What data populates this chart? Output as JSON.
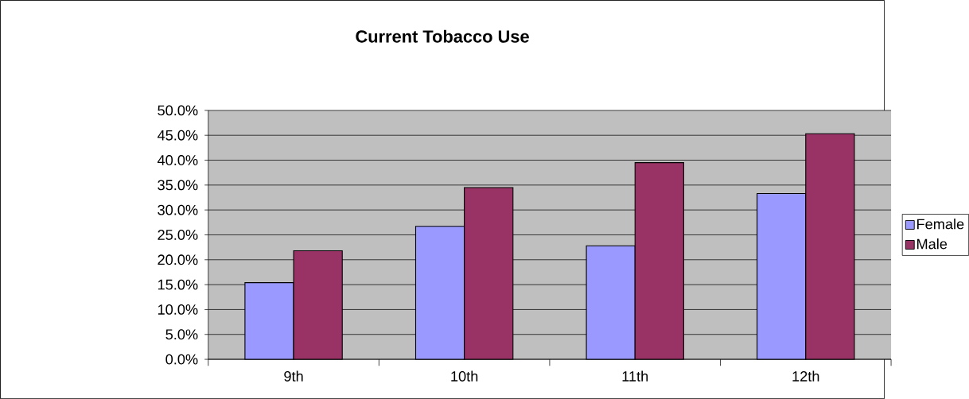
{
  "chart_data": {
    "type": "bar",
    "title": "Current Tobacco Use",
    "categories": [
      "9th",
      "10th",
      "11th",
      "12th"
    ],
    "series": [
      {
        "name": "Female",
        "color": "#9999ff",
        "values": [
          15.4,
          26.7,
          22.8,
          33.3
        ]
      },
      {
        "name": "Male",
        "color": "#993366",
        "values": [
          21.8,
          34.5,
          39.5,
          45.3
        ]
      }
    ],
    "ylim": [
      0,
      50
    ],
    "yticks": [
      {
        "value": 0,
        "label": "0.0%"
      },
      {
        "value": 5,
        "label": "5.0%"
      },
      {
        "value": 10,
        "label": "10.0%"
      },
      {
        "value": 15,
        "label": "15.0%"
      },
      {
        "value": 20,
        "label": "20.0%"
      },
      {
        "value": 25,
        "label": "25.0%"
      },
      {
        "value": 30,
        "label": "30.0%"
      },
      {
        "value": 35,
        "label": "35.0%"
      },
      {
        "value": 40,
        "label": "40.0%"
      },
      {
        "value": 45,
        "label": "45.0%"
      },
      {
        "value": 50,
        "label": "50.0%"
      }
    ],
    "grid": "y",
    "legend": "right"
  }
}
